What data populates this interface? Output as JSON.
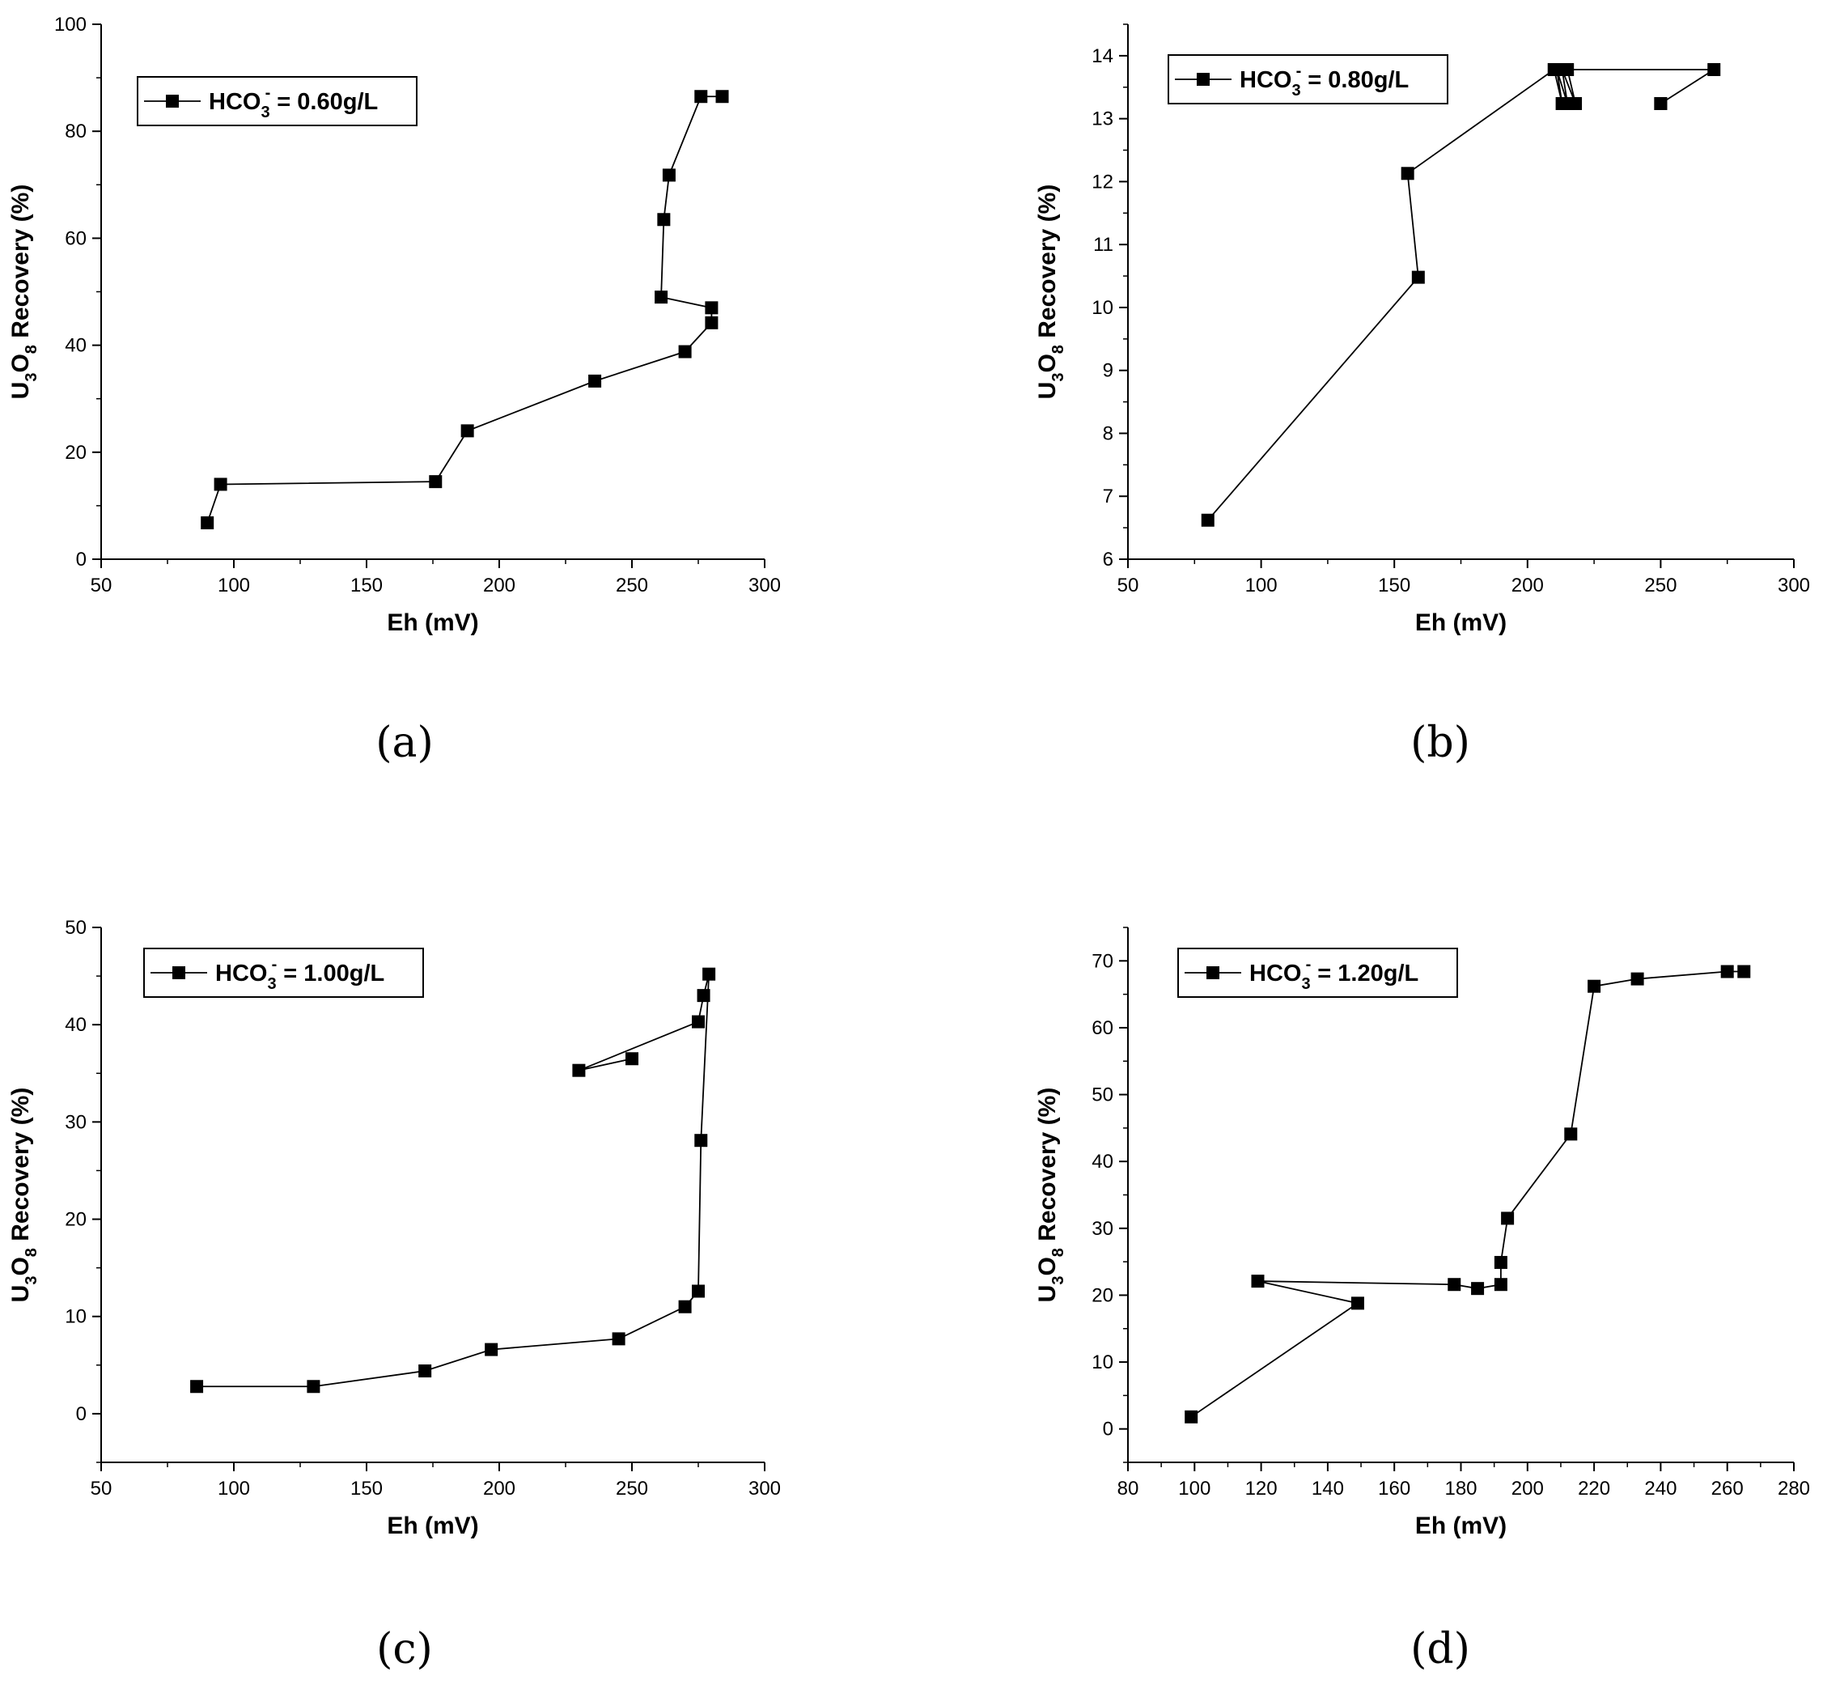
{
  "chart_data": [
    {
      "type": "line",
      "panel_label": "(a)",
      "xlabel": "Eh (mV)",
      "ylabel": {
        "prefix": "U",
        "sub1": "3",
        "mid": "O",
        "sub2": "8",
        "suffix": " Recovery (%)"
      },
      "legend": {
        "prefix": "HCO",
        "sub": "3",
        "sup": "-",
        "suffix": " = 0.60g/L"
      },
      "xlim": [
        50,
        300
      ],
      "ylim": [
        0,
        100
      ],
      "xticks": [
        50,
        100,
        150,
        200,
        250,
        300
      ],
      "yticks": [
        0,
        20,
        40,
        60,
        80,
        100
      ],
      "series": [
        {
          "name": "HCO3- = 0.60g/L",
          "x": [
            90,
            95,
            176,
            188,
            236,
            270,
            280,
            280,
            261,
            262,
            264,
            276,
            284
          ],
          "y": [
            6.8,
            14,
            14.5,
            24,
            33.3,
            38.8,
            44.2,
            47,
            49,
            63.5,
            71.8,
            86.5,
            86.5
          ]
        }
      ]
    },
    {
      "type": "line",
      "panel_label": "(b)",
      "xlabel": "Eh (mV)",
      "ylabel": {
        "prefix": "U",
        "sub1": "3",
        "mid": "O",
        "sub2": "8",
        "suffix": " Recovery (%)"
      },
      "legend": {
        "prefix": "HCO",
        "sub": "3",
        "sup": "-",
        "suffix": " = 0.80g/L"
      },
      "xlim": [
        50,
        300
      ],
      "ylim": [
        6,
        14.5
      ],
      "xticks": [
        50,
        100,
        150,
        200,
        250,
        300
      ],
      "yticks": [
        6,
        7,
        8,
        9,
        10,
        11,
        12,
        13,
        14
      ],
      "series": [
        {
          "name": "HCO3- = 0.80g/L",
          "x": [
            80,
            159,
            155,
            210,
            213,
            211,
            215,
            213,
            218,
            215,
            270,
            250,
            250
          ],
          "y": [
            6.62,
            10.48,
            12.13,
            13.78,
            13.24,
            13.78,
            13.24,
            13.78,
            13.24,
            13.78,
            13.78,
            13.24,
            13.24
          ]
        }
      ]
    },
    {
      "type": "line",
      "panel_label": "(c)",
      "xlabel": "Eh (mV)",
      "ylabel": {
        "prefix": "U",
        "sub1": "3",
        "mid": "O",
        "sub2": "8",
        "suffix": " Recovery (%)"
      },
      "legend": {
        "prefix": "HCO",
        "sub": "3",
        "sup": "-",
        "suffix": " = 1.00g/L"
      },
      "xlim": [
        50,
        300
      ],
      "ylim": [
        -5,
        50
      ],
      "xticks": [
        50,
        100,
        150,
        200,
        250,
        300
      ],
      "yticks": [
        0,
        10,
        20,
        30,
        40,
        50
      ],
      "series": [
        {
          "name": "HCO3- = 1.00g/L",
          "x": [
            86,
            130,
            172,
            197,
            245,
            270,
            275,
            276,
            279,
            277,
            275,
            230,
            250
          ],
          "y": [
            2.8,
            2.8,
            4.4,
            6.6,
            7.7,
            11,
            12.6,
            28.1,
            45.2,
            43,
            40.3,
            35.3,
            36.5
          ]
        }
      ]
    },
    {
      "type": "line",
      "panel_label": "(d)",
      "xlabel": "Eh (mV)",
      "ylabel": {
        "prefix": "U",
        "sub1": "3",
        "mid": "O",
        "sub2": "8",
        "suffix": " Recovery (%)"
      },
      "legend": {
        "prefix": "HCO",
        "sub": "3",
        "sup": "-",
        "suffix": " = 1.20g/L"
      },
      "xlim": [
        80,
        280
      ],
      "ylim": [
        -5,
        75
      ],
      "xticks": [
        80,
        100,
        120,
        140,
        160,
        180,
        200,
        220,
        240,
        260,
        280
      ],
      "yticks": [
        0,
        10,
        20,
        30,
        40,
        50,
        60,
        70
      ],
      "series": [
        {
          "name": "HCO3- = 1.20g/L",
          "x": [
            99,
            149,
            119,
            178,
            185,
            192,
            192,
            194,
            213,
            220,
            233,
            260,
            265
          ],
          "y": [
            1.8,
            18.8,
            22.1,
            21.6,
            21,
            21.6,
            24.9,
            31.5,
            44.1,
            66.2,
            67.3,
            68.4,
            68.4
          ]
        }
      ]
    }
  ]
}
